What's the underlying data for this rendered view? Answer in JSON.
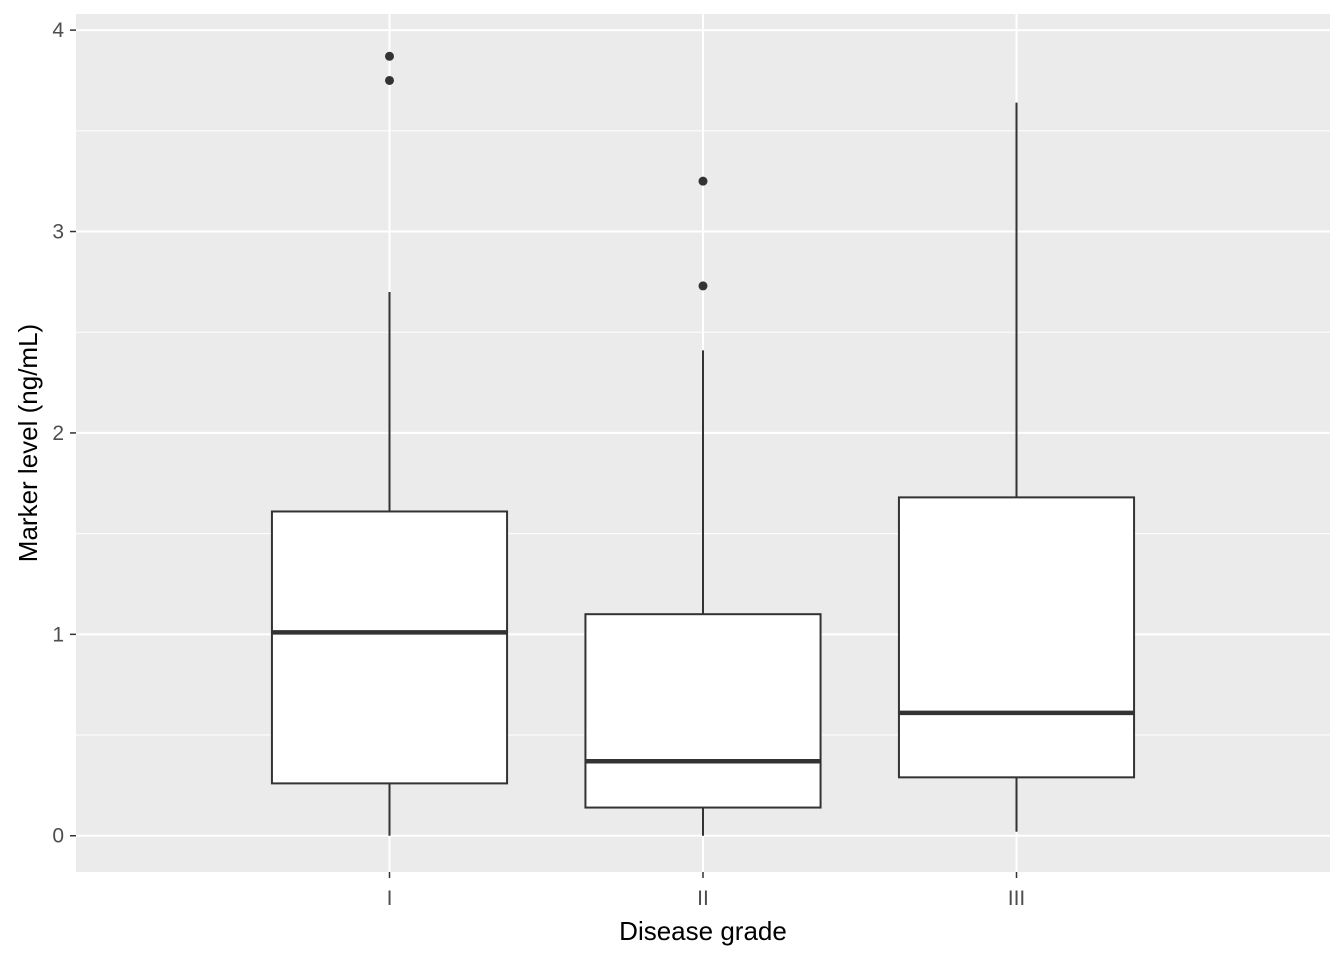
{
  "chart_data": {
    "type": "box",
    "title": "",
    "xlabel": "Disease grade",
    "ylabel": "Marker level (ng/mL)",
    "ylim": [
      -0.18,
      4.08
    ],
    "yticks": [
      0,
      1,
      2,
      3,
      4
    ],
    "categories": [
      "I",
      "II",
      "III"
    ],
    "boxes": [
      {
        "category": "I",
        "whisker_low": 0.0,
        "q1": 0.26,
        "median": 1.01,
        "q3": 1.61,
        "whisker_high": 2.7,
        "outliers": [
          3.75,
          3.87
        ]
      },
      {
        "category": "II",
        "whisker_low": 0.0,
        "q1": 0.14,
        "median": 0.37,
        "q3": 1.1,
        "whisker_high": 2.41,
        "outliers": [
          2.73,
          3.25
        ]
      },
      {
        "category": "III",
        "whisker_low": 0.02,
        "q1": 0.29,
        "median": 0.61,
        "q3": 1.68,
        "whisker_high": 3.64,
        "outliers": []
      }
    ],
    "grid": true,
    "legend": "none",
    "colors": {
      "panel": "#ebebeb",
      "grid": "#ffffff",
      "box_fill": "#ffffff",
      "box_line": "#333333",
      "tick_text": "#4d4d4d"
    }
  }
}
